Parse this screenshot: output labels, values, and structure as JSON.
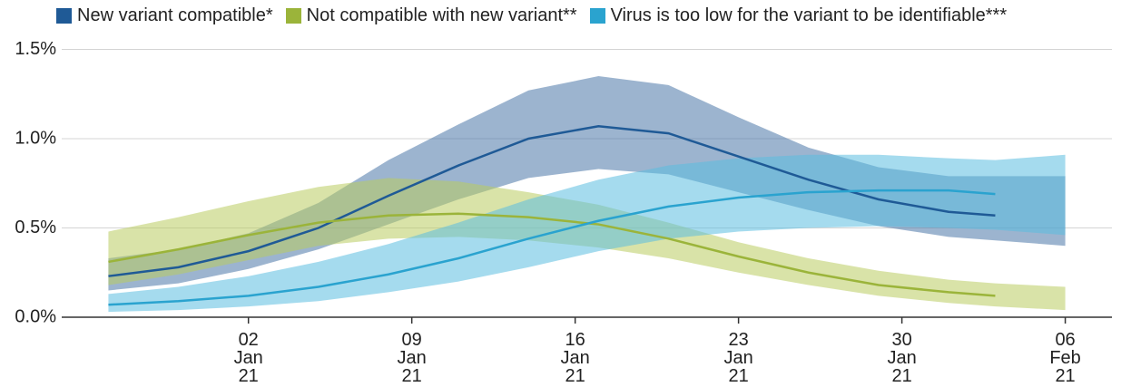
{
  "chart_data": {
    "type": "line-band",
    "x": [
      "2020-12-27",
      "2020-12-30",
      "2021-01-02",
      "2021-01-05",
      "2021-01-08",
      "2021-01-11",
      "2021-01-14",
      "2021-01-17",
      "2021-01-20",
      "2021-01-23",
      "2021-01-26",
      "2021-01-29",
      "2021-02-01",
      "2021-02-03",
      "2021-02-06"
    ],
    "xlim": [
      "2020-12-25",
      "2021-02-08"
    ],
    "xticks": [
      {
        "value": "2021-01-02",
        "label": "02\nJan\n21"
      },
      {
        "value": "2021-01-09",
        "label": "09\nJan\n21"
      },
      {
        "value": "2021-01-16",
        "label": "16\nJan\n21"
      },
      {
        "value": "2021-01-23",
        "label": "23\nJan\n21"
      },
      {
        "value": "2021-01-30",
        "label": "30\nJan\n21"
      },
      {
        "value": "2021-02-06",
        "label": "06\nFeb\n21"
      }
    ],
    "ylim": [
      0,
      1.5
    ],
    "yticks": [
      {
        "value": 0,
        "label": "0.0%"
      },
      {
        "value": 0.5,
        "label": "0.5%"
      },
      {
        "value": 1.0,
        "label": "1.0%"
      },
      {
        "value": 1.5,
        "label": "1.5%"
      }
    ],
    "grid": true,
    "series": [
      {
        "name": "New variant compatible*",
        "color": "#1f5a96",
        "band_color": "#4a76a8",
        "values": [
          0.23,
          0.28,
          0.37,
          0.5,
          0.68,
          0.85,
          1.0,
          1.07,
          1.03,
          0.9,
          0.77,
          0.66,
          0.59,
          0.57,
          null
        ],
        "upper": [
          0.33,
          0.38,
          0.47,
          0.64,
          0.88,
          1.08,
          1.27,
          1.35,
          1.3,
          1.12,
          0.95,
          0.84,
          0.79,
          0.79,
          0.79
        ],
        "lower": [
          0.15,
          0.19,
          0.27,
          0.38,
          0.52,
          0.66,
          0.78,
          0.83,
          0.8,
          0.7,
          0.6,
          0.51,
          0.45,
          0.43,
          0.4
        ]
      },
      {
        "name": "Not compatible with new variant**",
        "color": "#9bb43a",
        "band_color": "#b9cc60",
        "values": [
          0.31,
          0.38,
          0.46,
          0.53,
          0.57,
          0.58,
          0.56,
          0.52,
          0.44,
          0.34,
          0.25,
          0.18,
          0.14,
          0.12,
          null
        ],
        "upper": [
          0.48,
          0.56,
          0.65,
          0.73,
          0.78,
          0.76,
          0.7,
          0.63,
          0.53,
          0.42,
          0.33,
          0.26,
          0.21,
          0.19,
          0.17
        ],
        "lower": [
          0.18,
          0.24,
          0.32,
          0.4,
          0.44,
          0.45,
          0.43,
          0.39,
          0.33,
          0.25,
          0.18,
          0.12,
          0.08,
          0.06,
          0.04
        ]
      },
      {
        "name": "Virus is too low for the variant to be identifiable***",
        "color": "#2aa3cf",
        "band_color": "#5bbde0",
        "values": [
          0.07,
          0.09,
          0.12,
          0.17,
          0.24,
          0.33,
          0.44,
          0.54,
          0.62,
          0.67,
          0.7,
          0.71,
          0.71,
          0.69,
          null
        ],
        "upper": [
          0.13,
          0.17,
          0.23,
          0.31,
          0.41,
          0.53,
          0.66,
          0.77,
          0.85,
          0.89,
          0.91,
          0.91,
          0.89,
          0.88,
          0.91
        ],
        "lower": [
          0.03,
          0.04,
          0.06,
          0.09,
          0.14,
          0.2,
          0.28,
          0.37,
          0.44,
          0.48,
          0.5,
          0.51,
          0.5,
          0.49,
          0.46
        ]
      }
    ]
  }
}
